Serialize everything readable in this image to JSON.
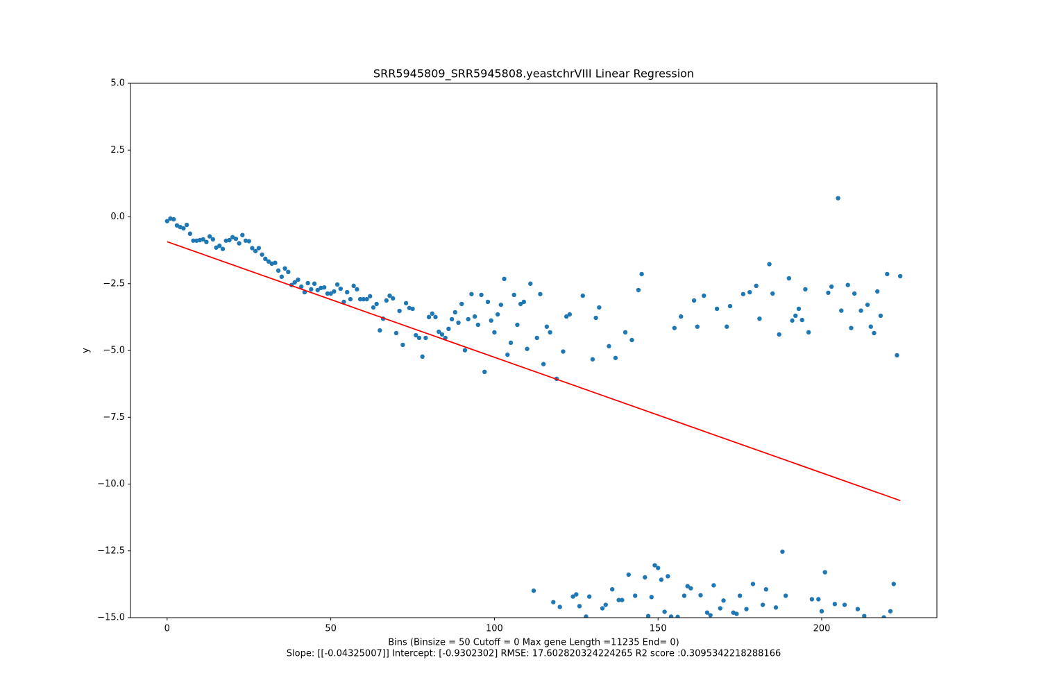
{
  "chart_data": {
    "type": "scatter",
    "title": "SRR5945809_SRR5945808.yeastchrVIII Linear Regression",
    "xlabel": [
      "Bins  (Binsize = 50 Cutoff = 0 Max gene Length =11235 End= 0)",
      "Slope: [[-0.04325007]] Intercept: [-0.9302302] RMSE: 17.602820324224265 R2 score :0.3095342218288166"
    ],
    "ylabel": "y",
    "xlim": [
      -11.2,
      235.2
    ],
    "ylim": [
      -15,
      5
    ],
    "xticks": [
      0,
      50,
      100,
      150,
      200
    ],
    "yticks": [
      {
        "value": 5,
        "label": "5.0"
      },
      {
        "value": 2.5,
        "label": "2.5"
      },
      {
        "value": 0,
        "label": "0.0"
      },
      {
        "value": -2.5,
        "label": "−2.5"
      },
      {
        "value": -5,
        "label": "−5.0"
      },
      {
        "value": -7.5,
        "label": "−7.5"
      },
      {
        "value": -10,
        "label": "−10.0"
      },
      {
        "value": -12.5,
        "label": "−12.5"
      },
      {
        "value": -15,
        "label": "−15.0"
      }
    ],
    "series": [
      {
        "color": "#1f77b4",
        "x": [
          0,
          1,
          2,
          3,
          4,
          5,
          6,
          7,
          8,
          9,
          10,
          11,
          12,
          13,
          14,
          15,
          16,
          17,
          18,
          19,
          20,
          21,
          22,
          23,
          24,
          25,
          26,
          27,
          28,
          29,
          30,
          31,
          32,
          33,
          34,
          35,
          36,
          37,
          38,
          39,
          40,
          41,
          42,
          43,
          44,
          45,
          46,
          47,
          48,
          49,
          50,
          51,
          52,
          53,
          54,
          55,
          56,
          57,
          58,
          59,
          60,
          61,
          62,
          63,
          64,
          65,
          66,
          67,
          68,
          69,
          70,
          71,
          72,
          73,
          74,
          75,
          76,
          77,
          78,
          79,
          80,
          81,
          82,
          83,
          84,
          85,
          86,
          87,
          88,
          89,
          90,
          91,
          92,
          93,
          94,
          95,
          96,
          97,
          98,
          99,
          100,
          101,
          102,
          103,
          104,
          105,
          106,
          107,
          108,
          109,
          110,
          111,
          112,
          113,
          114,
          115,
          116,
          117,
          118,
          119,
          120,
          121,
          122,
          123,
          124,
          125,
          126,
          127,
          128,
          129,
          130,
          131,
          132,
          133,
          134,
          135,
          136,
          137,
          138,
          139,
          140,
          141,
          142,
          143,
          144,
          145,
          146,
          147,
          148,
          149,
          150,
          151,
          152,
          153,
          154,
          155,
          156,
          157,
          158,
          159,
          160,
          161,
          162,
          163,
          164,
          165,
          166,
          167,
          168,
          169,
          170,
          171,
          172,
          173,
          174,
          175,
          176,
          177,
          178,
          179,
          180,
          181,
          182,
          183,
          184,
          185,
          186,
          187,
          188,
          189,
          190,
          191,
          192,
          193,
          194,
          195,
          196,
          197,
          198,
          199,
          200,
          201,
          202,
          203,
          204,
          205,
          206,
          207,
          208,
          209,
          210,
          211,
          212,
          213,
          214,
          215,
          216,
          217,
          218,
          219,
          220,
          221,
          222,
          223,
          224
        ],
        "values": [
          -0.16,
          -0.06,
          -0.09,
          -0.32,
          -0.38,
          -0.43,
          -0.3,
          -0.63,
          -0.89,
          -0.89,
          -0.87,
          -0.84,
          -0.94,
          -0.73,
          -0.84,
          -1.15,
          -1.08,
          -1.2,
          -0.89,
          -0.87,
          -0.76,
          -0.82,
          -0.99,
          -0.68,
          -0.89,
          -0.91,
          -1.17,
          -1.28,
          -1.17,
          -1.41,
          -1.57,
          -1.67,
          -1.75,
          -1.72,
          -2.01,
          -2.24,
          -1.93,
          -2.06,
          -2.55,
          -2.45,
          -2.35,
          -2.61,
          -2.82,
          -2.48,
          -2.71,
          -2.5,
          -2.74,
          -2.66,
          -2.64,
          -2.87,
          -2.87,
          -2.79,
          -2.53,
          -2.69,
          -3.18,
          -2.82,
          -3.08,
          -2.58,
          -2.71,
          -3.08,
          -3.08,
          -3.08,
          -2.97,
          -3.39,
          -3.26,
          -4.25,
          -3.81,
          -3.13,
          -2.95,
          -3.05,
          -4.35,
          -3.52,
          -4.79,
          -3.23,
          -3.41,
          -3.44,
          -4.43,
          -4.53,
          -5.23,
          -4.53,
          -3.75,
          -3.62,
          -3.75,
          -4.3,
          -4.4,
          -4.53,
          -4.19,
          -3.83,
          -3.57,
          -3.96,
          -3.26,
          -4.99,
          -3.83,
          -2.89,
          -3.73,
          -4.04,
          -2.92,
          -5.8,
          -3.18,
          -3.88,
          -4.32,
          -3.65,
          -3.29,
          -2.32,
          -5.16,
          -4.71,
          -2.92,
          -4.04,
          -3.26,
          -3.18,
          -4.94,
          -2.5,
          -13.99,
          -4.53,
          -2.89,
          -5.51,
          -4.11,
          -4.32,
          -14.42,
          -6.06,
          -14.6,
          -5.04,
          -3.73,
          -3.65,
          -14.21,
          -14.13,
          -14.57,
          -2.95,
          -14.96,
          -14.21,
          -5.33,
          -3.78,
          -3.39,
          -14.65,
          -14.52,
          -4.84,
          -13.94,
          -5.28,
          -14.34,
          -14.34,
          -4.32,
          -13.39,
          -4.61,
          -14.18,
          -2.74,
          -2.14,
          -13.49,
          -14.94,
          -14.23,
          -13.04,
          -13.14,
          -13.58,
          -14.78,
          -13.45,
          -14.96,
          -4.16,
          -14.97,
          -3.73,
          -14.18,
          -13.82,
          -13.9,
          -3.13,
          -4.11,
          -14.16,
          -2.95,
          -14.81,
          -14.91,
          -13.79,
          -3.44,
          -14.65,
          -14.36,
          -4.11,
          -3.34,
          -14.81,
          -14.86,
          -14.18,
          -2.89,
          -14.68,
          -2.82,
          -13.74,
          -2.58,
          -3.81,
          -14.52,
          -13.94,
          -1.77,
          -2.87,
          -14.62,
          -4.4,
          -12.53,
          -14.18,
          -2.3,
          -3.88,
          -3.7,
          -3.44,
          -3.86,
          -2.71,
          -4.32,
          -14.31,
          null,
          -14.31,
          -14.76,
          -13.3,
          -2.84,
          -2.61,
          -14.49,
          0.7,
          -3.51,
          -14.52,
          -2.55,
          -4.16,
          -2.87,
          -14.68,
          -3.51,
          -14.94,
          -3.29,
          -4.11,
          -4.35,
          -2.79,
          -3.7,
          -14.99,
          -2.14,
          -14.76,
          -13.74,
          -5.18,
          -2.22
        ]
      }
    ],
    "regression": {
      "color": "red",
      "x": [
        0,
        224
      ],
      "values": [
        -0.9302,
        -10.6182
      ]
    }
  }
}
